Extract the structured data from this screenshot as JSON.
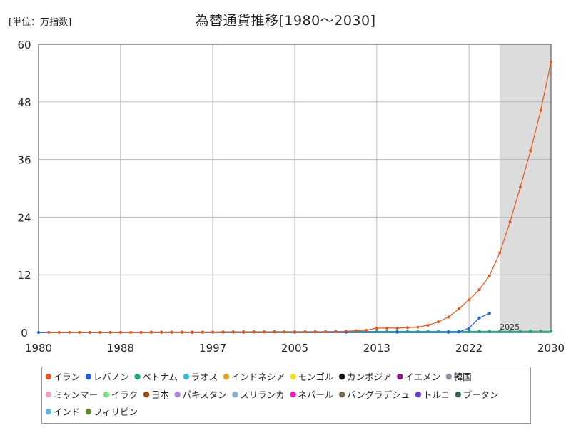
{
  "header": {
    "unit": "[単位：万指数]",
    "title": "為替通貨推移[1980～2030]"
  },
  "chart_data": {
    "type": "line",
    "title": "為替通貨推移[1980～2030]",
    "unit": "[単位：万指数]",
    "xlim": [
      1980,
      2030
    ],
    "ylim": [
      0,
      60
    ],
    "x_ticks": [
      "1980",
      "1988",
      "1997",
      "2005",
      "2013",
      "2022",
      "2030"
    ],
    "y_ticks": [
      "0",
      "12",
      "24",
      "36",
      "48",
      "60"
    ],
    "forecast_shade": [
      2025,
      2030
    ],
    "annotation": {
      "x": 2025,
      "y": 0.6,
      "text": "2025"
    },
    "grid": true,
    "legend_position": "bottom",
    "series": [
      {
        "name": "イラン",
        "color": "#e8561f",
        "x": [
          1981,
          1982,
          1983,
          1984,
          1985,
          1986,
          1987,
          1988,
          1989,
          1990,
          1991,
          1992,
          1993,
          1994,
          1995,
          1996,
          1997,
          1998,
          1999,
          2000,
          2001,
          2002,
          2003,
          2004,
          2005,
          2006,
          2007,
          2008,
          2009,
          2010,
          2011,
          2012,
          2013,
          2014,
          2015,
          2016,
          2017,
          2018,
          2019,
          2020,
          2021,
          2022,
          2023,
          2024,
          2025,
          2026,
          2027,
          2028,
          2029,
          2030
        ],
        "y": [
          0.01,
          0.01,
          0.01,
          0.01,
          0.01,
          0.01,
          0.01,
          0.01,
          0.01,
          0.01,
          0.01,
          0.01,
          0.02,
          0.02,
          0.02,
          0.03,
          0.03,
          0.04,
          0.05,
          0.06,
          0.07,
          0.08,
          0.08,
          0.09,
          0.1,
          0.11,
          0.12,
          0.15,
          0.2,
          0.25,
          0.35,
          0.45,
          0.9,
          0.9,
          0.9,
          1.0,
          1.1,
          1.5,
          2.2,
          3.2,
          4.9,
          6.8,
          8.9,
          11.8,
          16.6,
          23.0,
          30.2,
          37.8,
          46.2,
          56.3
        ]
      },
      {
        "name": "レバノン",
        "color": "#1f5fe0",
        "x": [
          1980,
          1985,
          1990,
          1995,
          2000,
          2005,
          2010,
          2015,
          2020,
          2021,
          2022,
          2023,
          2024
        ],
        "y": [
          0.0,
          0.0,
          0.01,
          0.02,
          0.03,
          0.03,
          0.03,
          0.03,
          0.03,
          0.1,
          0.9,
          3.0,
          4.0
        ]
      },
      {
        "name": "ベトナム",
        "color": "#1aaa7a",
        "x": [
          1991,
          1992,
          1993,
          1994,
          1995,
          1996,
          1997,
          1998,
          1999,
          2000,
          2001,
          2002,
          2003,
          2004,
          2005,
          2006,
          2007,
          2008,
          2009,
          2010,
          2011,
          2012,
          2013,
          2014,
          2015,
          2016,
          2017,
          2018,
          2019,
          2020,
          2021,
          2022,
          2023,
          2024,
          2025,
          2026,
          2027,
          2028,
          2029,
          2030
        ],
        "y": [
          0.1,
          0.1,
          0.1,
          0.1,
          0.1,
          0.1,
          0.1,
          0.13,
          0.14,
          0.14,
          0.15,
          0.15,
          0.16,
          0.16,
          0.16,
          0.16,
          0.16,
          0.17,
          0.18,
          0.19,
          0.21,
          0.21,
          0.21,
          0.21,
          0.22,
          0.22,
          0.23,
          0.23,
          0.23,
          0.23,
          0.23,
          0.23,
          0.24,
          0.25,
          0.25,
          0.25,
          0.25,
          0.26,
          0.26,
          0.26
        ]
      },
      {
        "name": "ラオス",
        "color": "#3cb8e8",
        "x": [
          1980,
          2030
        ],
        "y": [
          0,
          0
        ]
      },
      {
        "name": "インドネシア",
        "color": "#f0a020",
        "x": [
          1980,
          2030
        ],
        "y": [
          0.02,
          0.15
        ]
      },
      {
        "name": "モンゴル",
        "color": "#f5e020",
        "x": [
          1980,
          2030
        ],
        "y": [
          0,
          0.05
        ]
      },
      {
        "name": "カンボジア",
        "color": "#111111",
        "x": [
          1980,
          2030
        ],
        "y": [
          0,
          0.05
        ]
      },
      {
        "name": "イエメン",
        "color": "#8a1a8a",
        "x": [
          1980,
          2030
        ],
        "y": [
          0,
          0.02
        ]
      },
      {
        "name": "韓国",
        "color": "#8896a8",
        "x": [
          1980,
          2030
        ],
        "y": [
          0.01,
          0.015
        ]
      },
      {
        "name": "ミャンマー",
        "color": "#f0a0c8",
        "x": [
          1980,
          2030
        ],
        "y": [
          0,
          0.02
        ]
      },
      {
        "name": "イラク",
        "color": "#7ee07e",
        "x": [
          1980,
          2030
        ],
        "y": [
          0,
          0.02
        ]
      },
      {
        "name": "日本",
        "color": "#a04a10",
        "x": [
          1980,
          2030
        ],
        "y": [
          0,
          0
        ]
      },
      {
        "name": "パキスタン",
        "color": "#b088d8",
        "x": [
          1980,
          2030
        ],
        "y": [
          0,
          0.03
        ]
      },
      {
        "name": "スリランカ",
        "color": "#88aed0",
        "x": [
          1980,
          2030
        ],
        "y": [
          0,
          0.03
        ]
      },
      {
        "name": "ネパール",
        "color": "#f020c0",
        "x": [
          1980,
          2030
        ],
        "y": [
          0,
          0
        ]
      },
      {
        "name": "バングラデシュ",
        "color": "#7a6a50",
        "x": [
          1980,
          2030
        ],
        "y": [
          0,
          0
        ]
      },
      {
        "name": "トルコ",
        "color": "#7040d0",
        "x": [
          1980,
          2030
        ],
        "y": [
          0,
          0.04
        ]
      },
      {
        "name": "ブータン",
        "color": "#3a6a4a",
        "x": [
          1980,
          2030
        ],
        "y": [
          0,
          0
        ]
      },
      {
        "name": "インド",
        "color": "#60b8e8",
        "x": [
          1980,
          2030
        ],
        "y": [
          0,
          0
        ]
      },
      {
        "name": "フィリピン",
        "color": "#5a8a20",
        "x": [
          1980,
          2030
        ],
        "y": [
          0,
          0
        ]
      }
    ]
  }
}
